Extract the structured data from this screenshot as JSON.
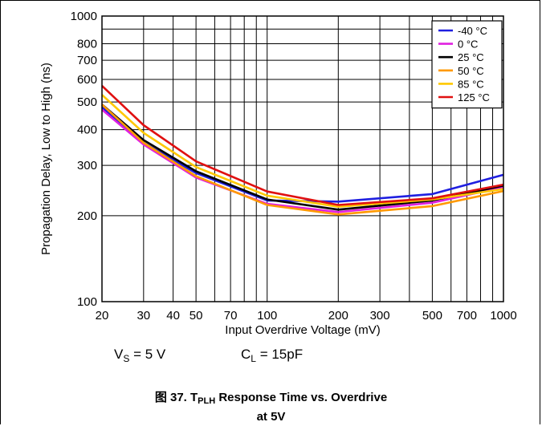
{
  "conditions": {
    "vs_sym": "V",
    "vs_sub": "S",
    "vs_val": " = 5 V",
    "cl_sym": "C",
    "cl_sub": "L",
    "cl_val": " = 15pF"
  },
  "caption": {
    "prefix": "图 37. T",
    "sub": "PLH",
    "suffix": " Response Time vs. Overdrive",
    "line2": "at 5V"
  },
  "chart_data": {
    "type": "line",
    "xlabel": "Input Overdrive Voltage (mV)",
    "ylabel": "Propagation Delay, Low to High (ns)",
    "xscale": "log",
    "yscale": "log",
    "xlim": [
      20,
      1000
    ],
    "ylim": [
      100,
      1000
    ],
    "grid": true,
    "legend_position": "top-right",
    "x_ticks": [
      20,
      30,
      40,
      50,
      70,
      100,
      200,
      300,
      500,
      700,
      1000
    ],
    "x_tick_labels": [
      "20",
      "30",
      "40",
      "50",
      "70",
      "100",
      "200",
      "300",
      "500",
      "700",
      "1000"
    ],
    "y_ticks": [
      100,
      200,
      300,
      400,
      500,
      600,
      700,
      800,
      1000
    ],
    "y_tick_labels": [
      "100",
      "200",
      "300",
      "400",
      "500",
      "600",
      "700",
      "800",
      "1000"
    ],
    "x": [
      20,
      30,
      50,
      100,
      200,
      500,
      1000
    ],
    "series": [
      {
        "name": "-40 °C",
        "color": "#1f1fe0",
        "values": [
          480,
          360,
          282,
          226,
          224,
          238,
          278
        ]
      },
      {
        "name": "0 °C",
        "color": "#e020e0",
        "values": [
          470,
          355,
          272,
          220,
          206,
          222,
          252
        ]
      },
      {
        "name": "25 °C",
        "color": "#000000",
        "values": [
          490,
          368,
          286,
          228,
          210,
          226,
          255
        ]
      },
      {
        "name": "50 °C",
        "color": "#ff9900",
        "values": [
          490,
          360,
          275,
          218,
          202,
          216,
          244
        ]
      },
      {
        "name": "85 °C",
        "color": "#ffc800",
        "values": [
          530,
          390,
          296,
          235,
          215,
          228,
          248
        ]
      },
      {
        "name": "125 °C",
        "color": "#e01010",
        "values": [
          570,
          415,
          310,
          243,
          218,
          230,
          257
        ]
      }
    ]
  }
}
